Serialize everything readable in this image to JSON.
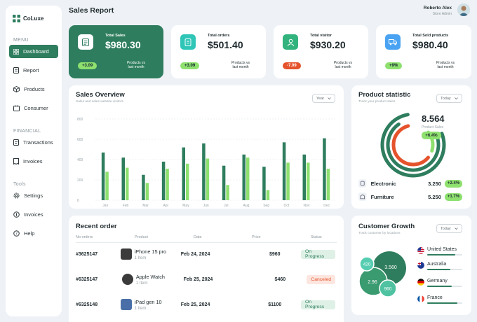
{
  "brand": {
    "name": "CoLuxe",
    "color": "#2e7d5e"
  },
  "sidebar": {
    "menu_label": "MENU",
    "menu": [
      {
        "label": "Dashboard",
        "icon": "grid-icon",
        "active": true
      },
      {
        "label": "Report",
        "icon": "report-icon"
      },
      {
        "label": "Products",
        "icon": "box-icon"
      },
      {
        "label": "Consumer",
        "icon": "consumer-icon"
      }
    ],
    "financial_label": "FINANCIAL",
    "financial": [
      {
        "label": "Transactions",
        "icon": "transactions-icon"
      },
      {
        "label": "Invoices",
        "icon": "invoice-icon"
      }
    ],
    "tools_label": "Tools",
    "tools": [
      {
        "label": "Settings",
        "icon": "gear-icon"
      },
      {
        "label": "Invoices",
        "icon": "invoice-icon"
      },
      {
        "label": "Help",
        "icon": "help-icon"
      }
    ]
  },
  "header": {
    "title": "Sales Report",
    "user_name": "Roberto Alex",
    "user_role": "Store Admin"
  },
  "stats": [
    {
      "label": "Total Sales",
      "value": "$980.30",
      "badge": "+3.09",
      "note": "Products vs last month",
      "icon": "sales-icon"
    },
    {
      "label": "Total orders",
      "value": "$501.40",
      "badge": "+3.09",
      "note": "Products vs last month",
      "icon": "orders-icon"
    },
    {
      "label": "Total visitor",
      "value": "$930.20",
      "badge": "-7.09",
      "note": "Products vs last month",
      "icon": "visitor-icon"
    },
    {
      "label": "Total Sold products",
      "value": "$980.40",
      "badge": "+9%",
      "note": "Products vs last month",
      "icon": "truck-icon"
    }
  ],
  "colors": {
    "dark_green": "#2e7d5e",
    "light_green": "#8ee06f",
    "red": "#e5532c",
    "blue": "#4aa3f2"
  },
  "sales_overview": {
    "title": "Sales Overview",
    "subtitle": "Sales and sales website visitors",
    "filter": "Year",
    "chart_data": {
      "type": "bar",
      "categories": [
        "Jan",
        "Feb",
        "Mar",
        "Apr",
        "May",
        "Jun",
        "Jul",
        "Aug",
        "Sep",
        "Oct",
        "Nov",
        "Dec"
      ],
      "y_ticks": [
        0,
        200,
        400,
        600,
        800
      ],
      "ylim": [
        0,
        800
      ],
      "grid": true,
      "series": [
        {
          "values": [
            470,
            420,
            250,
            380,
            520,
            560,
            340,
            450,
            330,
            570,
            450,
            610
          ]
        },
        {
          "values": [
            280,
            320,
            170,
            310,
            360,
            410,
            150,
            420,
            100,
            370,
            370,
            310
          ]
        }
      ]
    }
  },
  "product_statistic": {
    "title": "Product statistic",
    "subtitle": "Track your product sales",
    "filter": "Today",
    "total": "8.564",
    "total_label": "Product Sales",
    "total_badge": "+6.4%",
    "items": [
      {
        "name": "Electronic",
        "value": "3.250",
        "badge": "+2.4%",
        "icon": "electronic-icon"
      },
      {
        "name": "Furniture",
        "value": "5.250",
        "badge": "+1.7%",
        "icon": "furniture-icon"
      }
    ]
  },
  "recent_order": {
    "title": "Recent order",
    "columns": [
      "No orders",
      "Product",
      "Date",
      "Price",
      "Status"
    ],
    "rows": [
      {
        "id": "#3625147",
        "product": "iPhone 15 pro",
        "qty": "1 Item",
        "date": "Feb 24, 2024",
        "price": "$960",
        "status": "On Progress",
        "status_type": "progress"
      },
      {
        "id": "#6325147",
        "product": "Apple Watch",
        "qty": "1 Item",
        "date": "Feb 25, 2024",
        "price": "$460",
        "status": "Canceled",
        "status_type": "canceled"
      },
      {
        "id": "#6325148",
        "product": "iPad gen 10",
        "qty": "1 Item",
        "date": "Feb 25, 2024",
        "price": "$1100",
        "status": "On Progress",
        "status_type": "progress"
      }
    ]
  },
  "customer_growth": {
    "title": "Customer Growth",
    "subtitle": "Track customer by locations",
    "filter": "Today",
    "bubbles": [
      "420",
      "3.560",
      "2.96",
      "960"
    ],
    "countries": [
      {
        "name": "United States",
        "progress": 0.8
      },
      {
        "name": "Australia",
        "progress": 0.65
      },
      {
        "name": "Germany",
        "progress": 0.7
      },
      {
        "name": "France",
        "progress": 0.85
      }
    ]
  }
}
